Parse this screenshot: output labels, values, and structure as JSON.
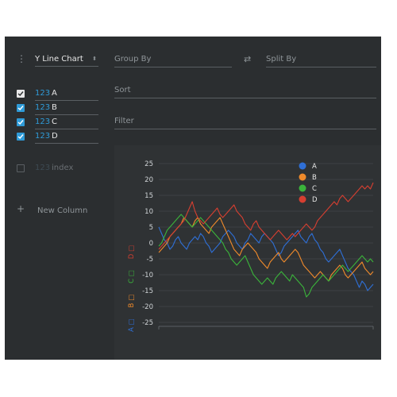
{
  "plugin": {
    "selected": "Y Line Chart"
  },
  "columns": [
    {
      "type": "123",
      "name": "A",
      "checked": true,
      "style": "white"
    },
    {
      "type": "123",
      "name": "B",
      "checked": true,
      "style": "blue"
    },
    {
      "type": "123",
      "name": "C",
      "checked": true,
      "style": "blue"
    },
    {
      "type": "123",
      "name": "D",
      "checked": true,
      "style": "blue"
    }
  ],
  "inactive_columns": [
    {
      "type": "123",
      "name": "index",
      "checked": false
    }
  ],
  "new_column_label": "New Column",
  "config": {
    "group_by": "Group By",
    "split_by": "Split By",
    "sort": "Sort",
    "filter": "Filter"
  },
  "colors": {
    "A": "#2f6fd6",
    "B": "#ef8a2b",
    "C": "#3bb43b",
    "D": "#d63f31",
    "accent": "#2f9bd8",
    "background": "#2b2e30"
  },
  "chart_data": {
    "type": "line",
    "ylim": [
      -25,
      25
    ],
    "yticks": [
      "25",
      "20",
      "15",
      "10",
      "5",
      "0",
      "-5",
      "-10",
      "-15",
      "-20",
      "-25"
    ],
    "legend_placement": "top-right",
    "grid": true,
    "vertical_legend": [
      "A □",
      "B □",
      "C □",
      "D □"
    ],
    "series": [
      {
        "name": "A",
        "color": "#2f6fd6",
        "values": [
          5,
          3,
          1,
          0,
          -2,
          -1,
          1,
          2,
          0,
          -1,
          -2,
          0,
          1,
          2,
          1,
          3,
          2,
          0,
          -1,
          -3,
          -2,
          -1,
          0,
          2,
          3,
          4,
          3,
          2,
          0,
          -1,
          -2,
          0,
          1,
          3,
          2,
          1,
          0,
          2,
          3,
          2,
          1,
          0,
          -2,
          -4,
          -3,
          -1,
          0,
          1,
          2,
          3,
          4,
          2,
          1,
          0,
          2,
          3,
          1,
          0,
          -2,
          -3,
          -5,
          -6,
          -5,
          -4,
          -3,
          -2,
          -4,
          -6,
          -8,
          -9,
          -10,
          -12,
          -14,
          -12,
          -13,
          -15,
          -14,
          -13
        ]
      },
      {
        "name": "B",
        "color": "#ef8a2b",
        "values": [
          -3,
          -2,
          -1,
          0,
          2,
          3,
          4,
          5,
          6,
          8,
          7,
          6,
          5,
          7,
          8,
          6,
          5,
          4,
          3,
          5,
          6,
          7,
          8,
          6,
          4,
          2,
          0,
          -2,
          -3,
          -4,
          -2,
          -1,
          0,
          -1,
          -2,
          -3,
          -5,
          -6,
          -7,
          -8,
          -6,
          -5,
          -4,
          -3,
          -5,
          -6,
          -5,
          -4,
          -3,
          -2,
          -3,
          -5,
          -7,
          -8,
          -9,
          -10,
          -11,
          -10,
          -9,
          -10,
          -11,
          -12,
          -10,
          -9,
          -8,
          -7,
          -8,
          -10,
          -11,
          -10,
          -9,
          -8,
          -7,
          -6,
          -8,
          -9,
          -10,
          -9
        ]
      },
      {
        "name": "C",
        "color": "#3bb43b",
        "values": [
          -1,
          0,
          2,
          4,
          5,
          6,
          7,
          8,
          9,
          8,
          7,
          6,
          5,
          6,
          7,
          8,
          7,
          6,
          5,
          4,
          3,
          2,
          1,
          0,
          -2,
          -3,
          -5,
          -6,
          -7,
          -6,
          -5,
          -4,
          -6,
          -8,
          -10,
          -11,
          -12,
          -13,
          -12,
          -11,
          -12,
          -13,
          -11,
          -10,
          -9,
          -10,
          -11,
          -12,
          -10,
          -11,
          -12,
          -13,
          -14,
          -17,
          -16,
          -14,
          -13,
          -12,
          -11,
          -10,
          -11,
          -12,
          -11,
          -10,
          -9,
          -8,
          -7,
          -8,
          -9,
          -8,
          -7,
          -6,
          -5,
          -4,
          -5,
          -6,
          -5,
          -6
        ]
      },
      {
        "name": "D",
        "color": "#d63f31",
        "values": [
          -2,
          -1,
          0,
          1,
          2,
          3,
          4,
          5,
          6,
          7,
          9,
          11,
          13,
          10,
          8,
          7,
          6,
          7,
          8,
          9,
          10,
          11,
          9,
          8,
          9,
          10,
          11,
          12,
          10,
          9,
          8,
          6,
          5,
          4,
          6,
          7,
          5,
          4,
          3,
          2,
          1,
          2,
          3,
          4,
          3,
          2,
          1,
          2,
          3,
          2,
          3,
          4,
          5,
          6,
          5,
          4,
          5,
          7,
          8,
          9,
          10,
          11,
          12,
          13,
          12,
          14,
          15,
          14,
          13,
          14,
          15,
          16,
          17,
          18,
          17,
          18,
          17,
          19
        ]
      }
    ]
  }
}
